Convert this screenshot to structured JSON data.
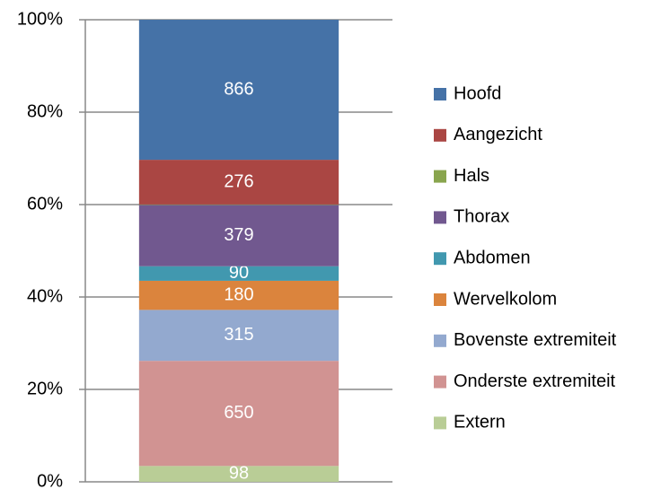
{
  "chart_data": {
    "type": "bar",
    "stacked": "percent",
    "categories": [
      null
    ],
    "series": [
      {
        "name": "Extern",
        "color": "#b9cd96",
        "values": [
          98
        ]
      },
      {
        "name": "Onderste extremiteit",
        "color": "#d19392",
        "values": [
          650
        ]
      },
      {
        "name": "Bovenste extremiteit",
        "color": "#93a9cf",
        "values": [
          315
        ]
      },
      {
        "name": "Wervelkolom",
        "color": "#db843d",
        "values": [
          180
        ]
      },
      {
        "name": "Abdomen",
        "color": "#4198af",
        "values": [
          90
        ]
      },
      {
        "name": "Thorax",
        "color": "#71588f",
        "values": [
          379
        ]
      },
      {
        "name": "Hals",
        "color": "#89a54e",
        "values": [
          3
        ],
        "show_value_label": false
      },
      {
        "name": "Aangezicht",
        "color": "#aa4643",
        "values": [
          276
        ]
      },
      {
        "name": "Hoofd",
        "color": "#4572a7",
        "values": [
          866
        ]
      }
    ],
    "ylim": [
      0,
      100
    ],
    "yticks": [
      {
        "value": 0,
        "label": "0%"
      },
      {
        "value": 20,
        "label": "20%"
      },
      {
        "value": 40,
        "label": "40%"
      },
      {
        "value": 60,
        "label": "60%"
      },
      {
        "value": 80,
        "label": "80%"
      },
      {
        "value": 100,
        "label": "100%"
      }
    ],
    "grid": true,
    "legend": "right"
  }
}
